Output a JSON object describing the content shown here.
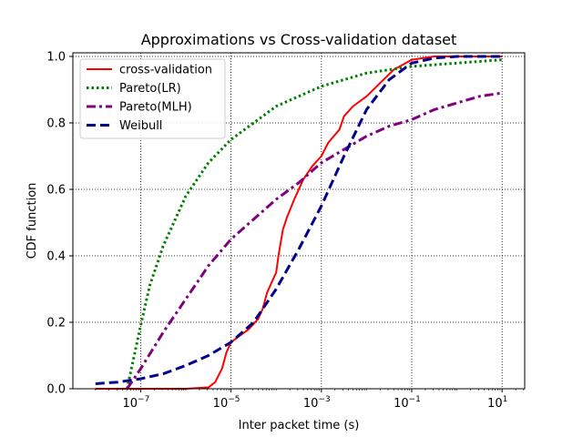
{
  "chart_data": {
    "type": "line",
    "title": "Approximations vs Cross-validation dataset",
    "xlabel": "Inter packet time (s)",
    "ylabel": "CDF function",
    "xscale": "log",
    "xlim_exponent": [
      -8.5,
      1.5
    ],
    "ylim": [
      0,
      1.0
    ],
    "grid": true,
    "legend_position": "top-left",
    "x_ticks": [
      {
        "exp": -7,
        "base": "10",
        "sup": "−7"
      },
      {
        "exp": -5,
        "base": "10",
        "sup": "−5"
      },
      {
        "exp": -3,
        "base": "10",
        "sup": "−3"
      },
      {
        "exp": -1,
        "base": "10",
        "sup": "−1"
      },
      {
        "exp": 1,
        "base": "10",
        "sup": "1"
      }
    ],
    "y_ticks": [
      "0.0",
      "0.2",
      "0.4",
      "0.6",
      "0.8",
      "1.0"
    ],
    "series": [
      {
        "name": "cross-validation",
        "color": "#ff0000",
        "style": "solid",
        "points": [
          [
            -8,
            0.0
          ],
          [
            -6,
            0.0
          ],
          [
            -5.5,
            0.004
          ],
          [
            -5.35,
            0.02
          ],
          [
            -5.2,
            0.06
          ],
          [
            -5.1,
            0.11
          ],
          [
            -5.0,
            0.14
          ],
          [
            -4.8,
            0.16
          ],
          [
            -4.6,
            0.18
          ],
          [
            -4.4,
            0.21
          ],
          [
            -4.3,
            0.24
          ],
          [
            -4.2,
            0.29
          ],
          [
            -4.0,
            0.35
          ],
          [
            -3.95,
            0.4
          ],
          [
            -3.85,
            0.48
          ],
          [
            -3.75,
            0.52
          ],
          [
            -3.6,
            0.57
          ],
          [
            -3.4,
            0.63
          ],
          [
            -3.2,
            0.67
          ],
          [
            -3.0,
            0.7
          ],
          [
            -2.85,
            0.74
          ],
          [
            -2.6,
            0.78
          ],
          [
            -2.5,
            0.82
          ],
          [
            -2.3,
            0.85
          ],
          [
            -2.0,
            0.88
          ],
          [
            -1.7,
            0.92
          ],
          [
            -1.4,
            0.96
          ],
          [
            -1.0,
            0.99
          ],
          [
            -0.5,
            1.0
          ],
          [
            1,
            1.0
          ]
        ]
      },
      {
        "name": "Pareto(LR)",
        "color": "#008000",
        "style": "dotted",
        "points": [
          [
            -7.3,
            0.0
          ],
          [
            -7.0,
            0.19
          ],
          [
            -6.8,
            0.31
          ],
          [
            -6.5,
            0.43
          ],
          [
            -6.0,
            0.58
          ],
          [
            -5.5,
            0.68
          ],
          [
            -5.0,
            0.75
          ],
          [
            -4.5,
            0.8
          ],
          [
            -4.0,
            0.85
          ],
          [
            -3.5,
            0.88
          ],
          [
            -3.0,
            0.91
          ],
          [
            -2.5,
            0.93
          ],
          [
            -2.0,
            0.95
          ],
          [
            -1.0,
            0.97
          ],
          [
            0.0,
            0.98
          ],
          [
            1.0,
            0.99
          ]
        ]
      },
      {
        "name": "Pareto(MLH)",
        "color": "#800080",
        "style": "dashdot",
        "points": [
          [
            -7.3,
            0.0
          ],
          [
            -7.0,
            0.06
          ],
          [
            -6.5,
            0.17
          ],
          [
            -6.0,
            0.27
          ],
          [
            -5.5,
            0.37
          ],
          [
            -5.0,
            0.45
          ],
          [
            -4.5,
            0.51
          ],
          [
            -4.0,
            0.57
          ],
          [
            -3.5,
            0.62
          ],
          [
            -3.0,
            0.68
          ],
          [
            -2.5,
            0.72
          ],
          [
            -2.0,
            0.76
          ],
          [
            -1.5,
            0.79
          ],
          [
            -1.0,
            0.81
          ],
          [
            -0.5,
            0.84
          ],
          [
            0.0,
            0.86
          ],
          [
            0.5,
            0.88
          ],
          [
            1.0,
            0.89
          ]
        ]
      },
      {
        "name": "Weibull",
        "color": "#00008b",
        "style": "dashed",
        "points": [
          [
            -8.0,
            0.015
          ],
          [
            -7.5,
            0.02
          ],
          [
            -7.0,
            0.03
          ],
          [
            -6.5,
            0.045
          ],
          [
            -6.0,
            0.07
          ],
          [
            -5.5,
            0.1
          ],
          [
            -5.0,
            0.14
          ],
          [
            -4.5,
            0.2
          ],
          [
            -4.0,
            0.3
          ],
          [
            -3.5,
            0.42
          ],
          [
            -3.0,
            0.55
          ],
          [
            -2.5,
            0.7
          ],
          [
            -2.0,
            0.84
          ],
          [
            -1.5,
            0.93
          ],
          [
            -1.0,
            0.98
          ],
          [
            -0.5,
            0.995
          ],
          [
            0.0,
            1.0
          ],
          [
            1.0,
            1.0
          ]
        ]
      }
    ]
  }
}
